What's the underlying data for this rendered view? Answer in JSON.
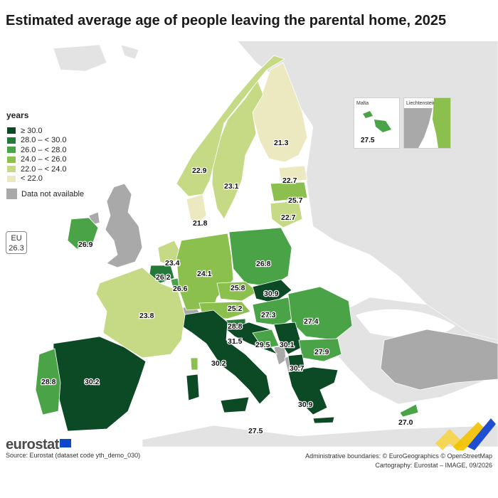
{
  "title": "Estimated average age of people leaving the parental home, 2025",
  "legend": {
    "title": "years",
    "classes": [
      {
        "label": "≥ 30.0",
        "color": "#0b4a24"
      },
      {
        "label": "28.0 – < 30.0",
        "color": "#257a3a"
      },
      {
        "label": "26.0 – < 28.0",
        "color": "#4aa447"
      },
      {
        "label": "24.0 – < 26.0",
        "color": "#8cc04e"
      },
      {
        "label": "22.0 – < 24.0",
        "color": "#c6da86"
      },
      {
        "label": "< 22.0",
        "color": "#ece9c0"
      }
    ],
    "not_available": {
      "label": "Data not available",
      "color": "#a9a9a9"
    }
  },
  "eu_box": {
    "label": "EU",
    "value": "26.3"
  },
  "insets": {
    "malta": {
      "label": "Malta",
      "value": "27.5"
    },
    "liechtenstein": {
      "label": "Liechtenstein"
    }
  },
  "values": {
    "finland": "21.3",
    "sweden": "23.1",
    "norway": "22.9",
    "estonia": "22.7",
    "latvia": "25.7",
    "lithuania": "22.7",
    "denmark": "21.8",
    "ireland": "26.9",
    "netherlands": "23.4",
    "belgium": "26.2",
    "luxembourg": "26.6",
    "germany": "24.1",
    "poland": "26.8",
    "czechia": "25.8",
    "slovakia": "30.9",
    "austria": "25.2",
    "hungary": "27.3",
    "romania": "27.4",
    "slovenia": "28.8",
    "croatia": "31.5",
    "bosnia": "29.5",
    "serbia": "30.1",
    "bulgaria": "27.9",
    "north_macedonia": "30.7",
    "greece": "30.9",
    "italy": "30.2",
    "spain": "30.2",
    "portugal": "28.8",
    "france": "23.8",
    "cyprus": "27.0",
    "malta_main": "27.5"
  },
  "footer": {
    "logo": "eurostat",
    "source": "Source: Eurostat (dataset code yth_demo_030)",
    "boundaries": "Administrative boundaries: © EuroGeographics © OpenStreetMap",
    "cartography": "Cartography: Eurostat – IMAGE, 09/2026"
  }
}
